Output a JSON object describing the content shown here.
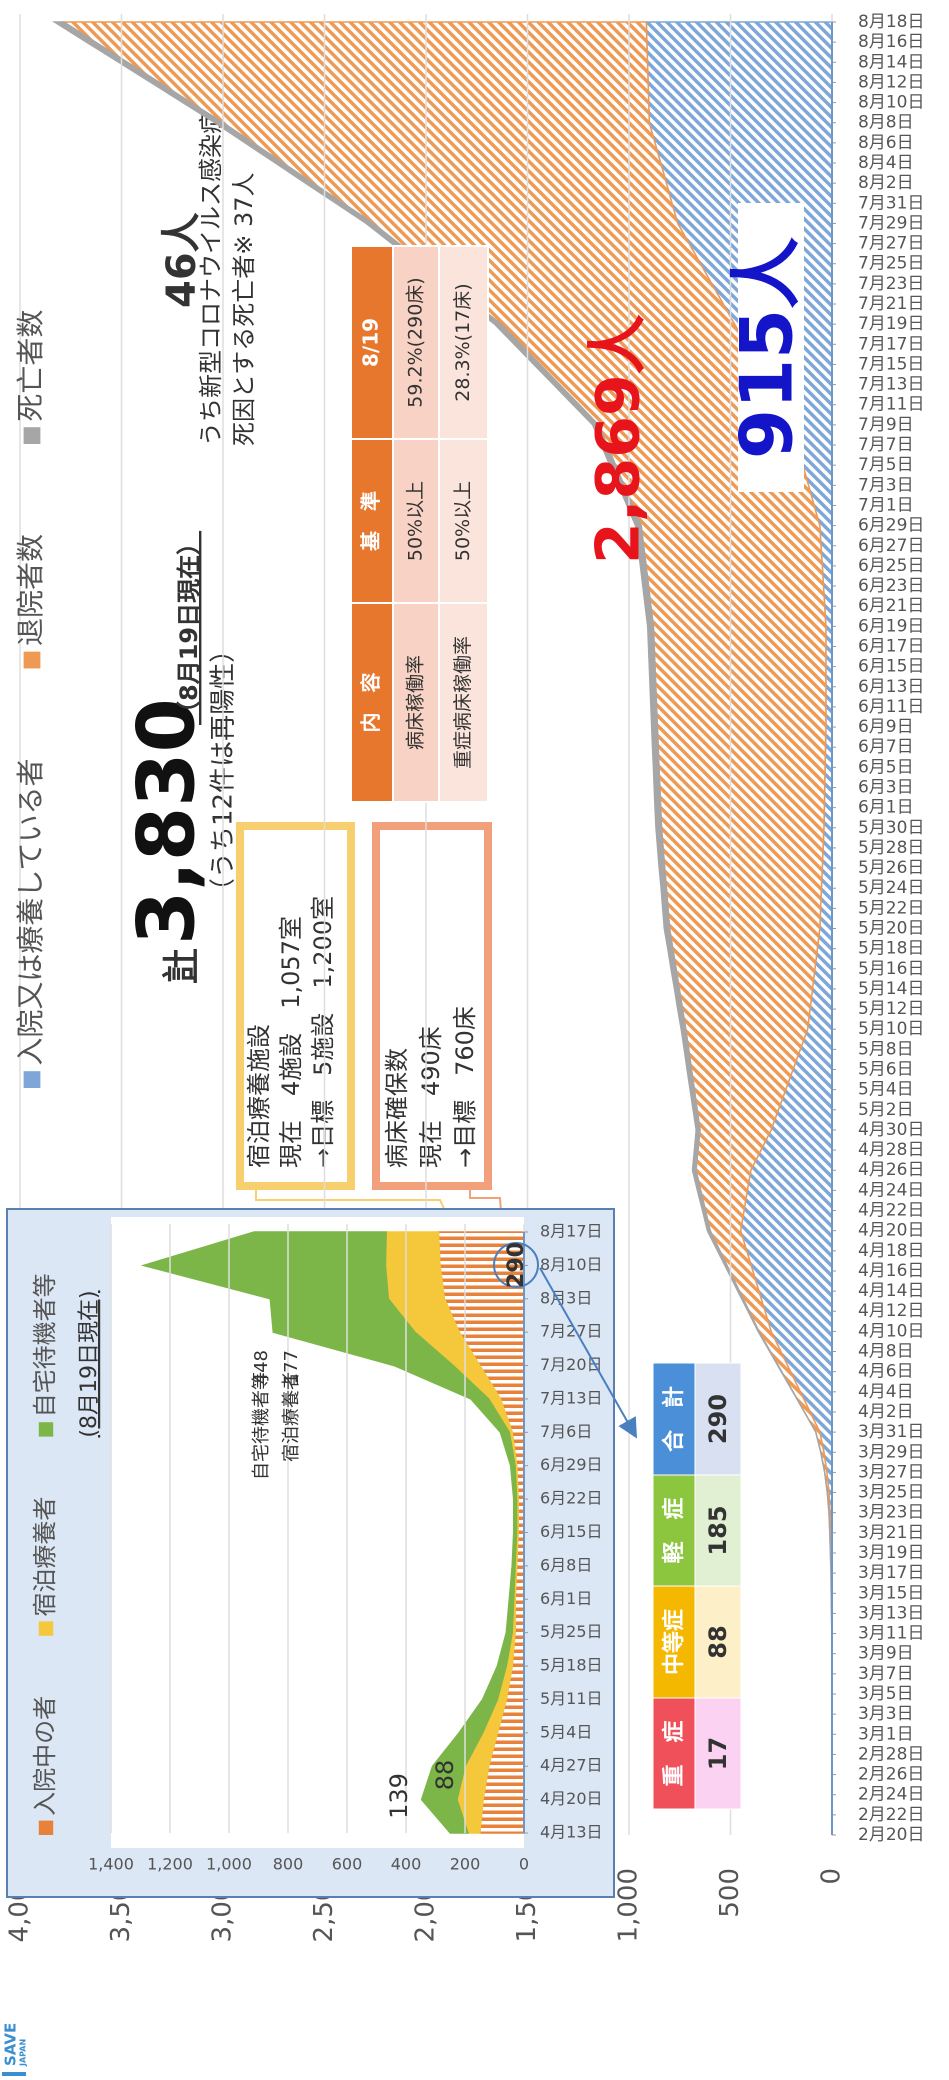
{
  "chart_data": [
    {
      "type": "area",
      "stacked": true,
      "legend": "top",
      "grid": true,
      "categories": [
        "2月20日",
        "2月22日",
        "2月24日",
        "2月26日",
        "2月28日",
        "3月1日",
        "3月3日",
        "3月5日",
        "3月7日",
        "3月9日",
        "3月11日",
        "3月13日",
        "3月15日",
        "3月17日",
        "3月19日",
        "3月21日",
        "3月23日",
        "3月25日",
        "3月27日",
        "3月29日",
        "3月31日",
        "4月2日",
        "4月4日",
        "4月6日",
        "4月8日",
        "4月10日",
        "4月12日",
        "4月14日",
        "4月16日",
        "4月18日",
        "4月20日",
        "4月22日",
        "4月24日",
        "4月26日",
        "4月28日",
        "4月30日",
        "5月2日",
        "5月4日",
        "5月6日",
        "5月8日",
        "5月10日",
        "5月12日",
        "5月14日",
        "5月16日",
        "5月18日",
        "5月20日",
        "5月22日",
        "5月24日",
        "5月26日",
        "5月28日",
        "5月30日",
        "6月1日",
        "6月3日",
        "6月5日",
        "6月7日",
        "6月9日",
        "6月11日",
        "6月13日",
        "6月15日",
        "6月17日",
        "6月19日",
        "6月21日",
        "6月23日",
        "6月25日",
        "6月27日",
        "6月29日",
        "7月1日",
        "7月3日",
        "7月5日",
        "7月7日",
        "7月9日",
        "7月11日",
        "7月13日",
        "7月15日",
        "7月17日",
        "7月19日",
        "7月21日",
        "7月23日",
        "7月25日",
        "7月27日",
        "7月29日",
        "7月31日",
        "8月2日",
        "8月4日",
        "8月6日",
        "8月8日",
        "8月10日",
        "8月12日",
        "8月14日",
        "8月16日",
        "8月18日"
      ],
      "series": [
        {
          "name": "入院又は療養している者",
          "color": "#7ea7d8",
          "values": [
            0,
            0,
            0,
            0,
            0,
            0,
            0,
            0,
            0,
            0,
            1,
            2,
            3,
            4,
            6,
            8,
            10,
            15,
            25,
            40,
            60,
            108,
            156,
            204,
            252,
            300,
            330,
            360,
            390,
            420,
            450,
            433,
            417,
            400,
            350,
            300,
            264,
            228,
            192,
            156,
            120,
            108,
            96,
            84,
            72,
            60,
            56,
            52,
            48,
            44,
            40,
            38,
            36,
            34,
            32,
            30,
            30,
            30,
            30,
            30,
            30,
            36,
            42,
            48,
            54,
            60,
            88,
            116,
            144,
            172,
            200,
            256,
            312,
            368,
            424,
            480,
            536,
            592,
            648,
            704,
            760,
            788,
            816,
            844,
            872,
            900,
            903,
            906,
            909,
            912,
            915
          ],
          "value_labels": [
            null,
            null,
            null,
            null,
            null,
            null,
            null,
            null,
            null,
            null,
            null,
            null,
            null,
            null,
            null,
            null,
            null,
            null,
            null,
            null,
            null,
            null,
            null,
            null,
            null,
            null,
            null,
            null,
            null,
            null,
            null,
            null,
            null,
            null,
            null,
            null,
            null,
            null,
            null,
            null,
            null,
            null,
            null,
            null,
            null,
            null,
            null,
            null,
            null,
            null,
            null,
            null,
            null,
            null,
            null,
            null,
            null,
            null,
            null,
            null,
            null,
            null,
            null,
            null,
            null,
            null,
            null,
            null,
            null,
            null,
            null,
            null,
            null,
            null,
            null,
            null,
            null,
            null,
            null,
            null,
            null,
            null,
            null,
            null,
            null,
            null,
            null,
            null,
            null,
            null,
            "915人"
          ]
        },
        {
          "name": "退院者数",
          "color": "#ee9a55",
          "values": [
            0,
            0,
            0,
            0,
            0,
            0,
            0,
            0,
            0,
            0,
            0,
            0,
            1,
            1,
            2,
            3,
            5,
            8,
            11,
            15,
            20,
            28,
            36,
            44,
            52,
            60,
            78,
            96,
            114,
            132,
            150,
            190,
            230,
            270,
            310,
            350,
            400,
            450,
            500,
            550,
            600,
            628,
            656,
            684,
            712,
            740,
            752,
            764,
            776,
            788,
            800,
            806,
            812,
            818,
            824,
            830,
            834,
            838,
            842,
            846,
            850,
            856,
            862,
            868,
            874,
            880,
            894,
            908,
            922,
            936,
            950,
            990,
            1030,
            1070,
            1110,
            1150,
            1220,
            1290,
            1360,
            1430,
            1500,
            1620,
            1740,
            1860,
            1980,
            2100,
            2254,
            2408,
            2562,
            2716,
            2869
          ],
          "value_labels": [
            null,
            null,
            null,
            null,
            null,
            null,
            null,
            null,
            null,
            null,
            null,
            null,
            null,
            null,
            null,
            null,
            null,
            null,
            null,
            null,
            null,
            null,
            null,
            null,
            null,
            null,
            null,
            null,
            null,
            null,
            null,
            null,
            null,
            null,
            null,
            null,
            null,
            null,
            null,
            null,
            null,
            null,
            null,
            null,
            null,
            null,
            null,
            null,
            null,
            null,
            null,
            null,
            null,
            null,
            null,
            null,
            null,
            null,
            null,
            null,
            null,
            null,
            null,
            null,
            null,
            null,
            null,
            null,
            null,
            null,
            null,
            null,
            null,
            null,
            null,
            null,
            null,
            null,
            null,
            null,
            null,
            null,
            null,
            null,
            null,
            null,
            null,
            null,
            null,
            null,
            "2,869人"
          ]
        },
        {
          "name": "死亡者数",
          "color": "#a6a6a6",
          "values": [
            0,
            0,
            0,
            0,
            0,
            0,
            0,
            0,
            0,
            0,
            0,
            0,
            0,
            0,
            0,
            0,
            0,
            0,
            0,
            0,
            0,
            0,
            1,
            2,
            3,
            4,
            6,
            8,
            10,
            12,
            14,
            15,
            16,
            17,
            18,
            19,
            20,
            21,
            22,
            22,
            23,
            24,
            24,
            25,
            25,
            26,
            26,
            26,
            27,
            27,
            27,
            28,
            28,
            28,
            28,
            28,
            28,
            28,
            28,
            28,
            28,
            28,
            28,
            28,
            28,
            28,
            28,
            28,
            29,
            29,
            29,
            30,
            30,
            31,
            31,
            32,
            32,
            33,
            33,
            34,
            35,
            36,
            37,
            38,
            39,
            40,
            41,
            42,
            43,
            45,
            46
          ],
          "value_labels": [
            null,
            null,
            null,
            null,
            null,
            null,
            null,
            null,
            null,
            null,
            null,
            null,
            null,
            null,
            null,
            null,
            null,
            null,
            null,
            null,
            null,
            null,
            null,
            null,
            null,
            null,
            null,
            null,
            null,
            null,
            null,
            null,
            null,
            null,
            null,
            null,
            null,
            null,
            null,
            null,
            null,
            null,
            null,
            null,
            null,
            null,
            null,
            null,
            null,
            null,
            null,
            null,
            null,
            null,
            null,
            null,
            null,
            null,
            null,
            null,
            null,
            null,
            null,
            null,
            null,
            null,
            null,
            null,
            null,
            null,
            null,
            null,
            null,
            null,
            null,
            null,
            null,
            null,
            null,
            null,
            null,
            null,
            null,
            null,
            null,
            null,
            null,
            null,
            null,
            null,
            "46人"
          ]
        }
      ],
      "ylim": [
        0,
        4000
      ],
      "yticks": [
        0,
        500,
        {
          "value": 1000,
          "label": "1,000"
        },
        {
          "value": 1500,
          "label": "1,500"
        },
        {
          "value": 2000,
          "label": "2,000"
        },
        {
          "value": 2500,
          "label": "2,500"
        },
        {
          "value": 3000,
          "label": "3,000"
        },
        {
          "value": 3500,
          "label": "3,500"
        },
        {
          "value": 4000,
          "label": "4,000"
        }
      ],
      "death_note": [
        "うち新型コロナウイルス感染症を",
        "死因とする死亡者※ 37人"
      ]
    },
    {
      "type": "area",
      "stacked": true,
      "legend": "top",
      "grid": true,
      "subtitle": "(8月19日現在)",
      "categories": [
        "4月13日",
        "4月20日",
        "4月27日",
        "5月4日",
        "5月11日",
        "5月18日",
        "5月25日",
        "6月1日",
        "6月8日",
        "6月15日",
        "6月22日",
        "6月29日",
        "7月6日",
        "7月13日",
        "7月20日",
        "7月27日",
        "8月3日",
        "8月10日",
        "8月17日"
      ],
      "series": [
        {
          "name": "入院中の者",
          "color": "#e8823a",
          "values": [
            150,
            139,
            120,
            90,
            60,
            40,
            30,
            30,
            25,
            20,
            20,
            25,
            40,
            80,
            150,
            220,
            270,
            285,
            290
          ]
        },
        {
          "name": "宿泊療養者",
          "color": "#f5c83c",
          "values": [
            40,
            88,
            80,
            50,
            30,
            20,
            10,
            5,
            5,
            5,
            5,
            5,
            10,
            40,
            90,
            150,
            190,
            185,
            177
          ]
        },
        {
          "name": "自宅待機者等",
          "color": "#7cb648",
          "values": [
            60,
            120,
            110,
            80,
            50,
            30,
            20,
            15,
            10,
            10,
            10,
            15,
            30,
            60,
            200,
            480,
            400,
            820,
            448
          ]
        }
      ],
      "ylim": [
        0,
        1400
      ],
      "yticks": [
        0,
        200,
        400,
        600,
        800,
        {
          "value": 1000,
          "label": "1,000"
        },
        {
          "value": 1200,
          "label": "1,200"
        },
        {
          "value": 1400,
          "label": "1,400"
        }
      ]
    }
  ],
  "total": {
    "prefix": "計",
    "value": "3,830",
    "date": "（8月19日現在）",
    "note": "（うち12件は再陽性）"
  },
  "hotel_box": {
    "title": "宿泊療養施設",
    "current": "現在　4施設　1,057室",
    "target": "→目標　5施設　1,200室"
  },
  "bed_box": {
    "title": "病床確保数",
    "current": "現在　490床",
    "target": "→目標　760床"
  },
  "bed_table": {
    "header": [
      "内　容",
      "基　準",
      "8/19"
    ],
    "rows": [
      [
        "病床稼働率",
        "50%以上",
        "59.2%(290床)"
      ],
      [
        "重症病床稼働率",
        "50%以上",
        "28.3%(17床)"
      ]
    ]
  },
  "severity_table": {
    "header": [
      "重　症",
      "中等症",
      "軽　症",
      "合　計"
    ],
    "values": [
      "17",
      "88",
      "185",
      "290"
    ]
  },
  "logo": {
    "line1": "SAVE",
    "line2": "JAPAN"
  }
}
